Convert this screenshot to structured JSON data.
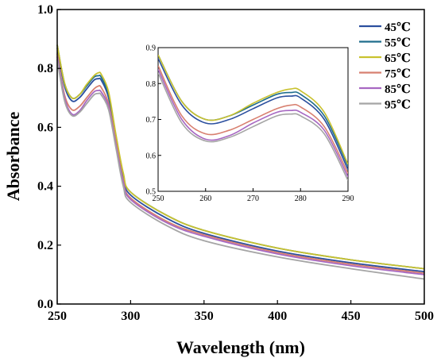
{
  "chart_data": {
    "type": "line",
    "title": "",
    "xlabel": "Wavelength (nm)",
    "ylabel": "Absorbance",
    "xlim": [
      250,
      500
    ],
    "ylim": [
      0.0,
      1.0
    ],
    "x_ticks": [
      "250",
      "300",
      "350",
      "400",
      "450",
      "500"
    ],
    "y_ticks": [
      "0.0",
      "0.2",
      "0.4",
      "0.6",
      "0.8",
      "1.0"
    ],
    "grid": false,
    "legend_position": "top-right",
    "x": [
      250,
      255,
      260,
      265,
      270,
      275,
      278,
      280,
      285,
      290,
      295,
      300,
      325,
      350,
      400,
      450,
      500
    ],
    "series": [
      {
        "name": "45℃",
        "color": "#2b4f9e",
        "values": [
          0.87,
          0.74,
          0.69,
          0.7,
          0.73,
          0.76,
          0.765,
          0.76,
          0.7,
          0.56,
          0.43,
          0.37,
          0.29,
          0.24,
          0.18,
          0.14,
          0.11
        ]
      },
      {
        "name": "55℃",
        "color": "#1f6d8c",
        "values": [
          0.88,
          0.75,
          0.7,
          0.71,
          0.74,
          0.77,
          0.775,
          0.77,
          0.71,
          0.57,
          0.44,
          0.38,
          0.3,
          0.25,
          0.19,
          0.15,
          0.12
        ]
      },
      {
        "name": "65℃",
        "color": "#c9c22f",
        "values": [
          0.88,
          0.75,
          0.7,
          0.71,
          0.745,
          0.775,
          0.785,
          0.78,
          0.72,
          0.575,
          0.445,
          0.38,
          0.3,
          0.25,
          0.19,
          0.15,
          0.12
        ]
      },
      {
        "name": "75℃",
        "color": "#d88070",
        "values": [
          0.85,
          0.71,
          0.66,
          0.67,
          0.7,
          0.73,
          0.74,
          0.735,
          0.68,
          0.55,
          0.42,
          0.36,
          0.28,
          0.235,
          0.175,
          0.135,
          0.105
        ]
      },
      {
        "name": "85℃",
        "color": "#a768c2",
        "values": [
          0.84,
          0.7,
          0.645,
          0.655,
          0.69,
          0.72,
          0.725,
          0.72,
          0.67,
          0.54,
          0.415,
          0.355,
          0.275,
          0.23,
          0.17,
          0.13,
          0.1
        ]
      },
      {
        "name": "95℃",
        "color": "#a5a5a5",
        "values": [
          0.83,
          0.69,
          0.64,
          0.65,
          0.68,
          0.71,
          0.715,
          0.71,
          0.66,
          0.53,
          0.4,
          0.345,
          0.265,
          0.215,
          0.16,
          0.12,
          0.085
        ]
      }
    ],
    "inset": {
      "xlim": [
        250,
        290
      ],
      "ylim": [
        0.5,
        0.9
      ],
      "x_ticks": [
        "250",
        "260",
        "270",
        "280",
        "290"
      ],
      "y_ticks": [
        "0.5",
        "0.6",
        "0.7",
        "0.8",
        "0.9"
      ]
    }
  }
}
